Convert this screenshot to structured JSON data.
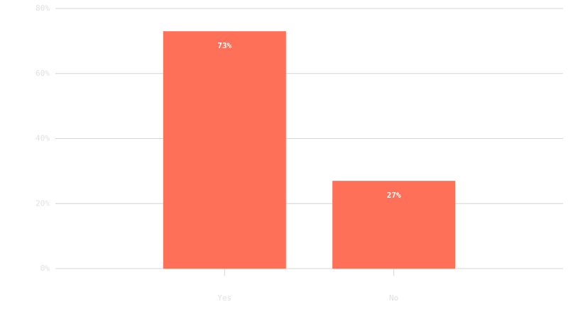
{
  "chart_data": {
    "type": "bar",
    "categories": [
      "Yes",
      "No"
    ],
    "values": [
      73,
      27
    ],
    "value_labels": [
      "73%",
      "27%"
    ],
    "color": "#ff7058",
    "ylim": [
      0,
      80
    ],
    "yticks": [
      {
        "value": 0,
        "label": "0%"
      },
      {
        "value": 20,
        "label": "20%"
      },
      {
        "value": 40,
        "label": "40%"
      },
      {
        "value": 60,
        "label": "60%"
      },
      {
        "value": 80,
        "label": "80%"
      }
    ],
    "grid": true
  }
}
